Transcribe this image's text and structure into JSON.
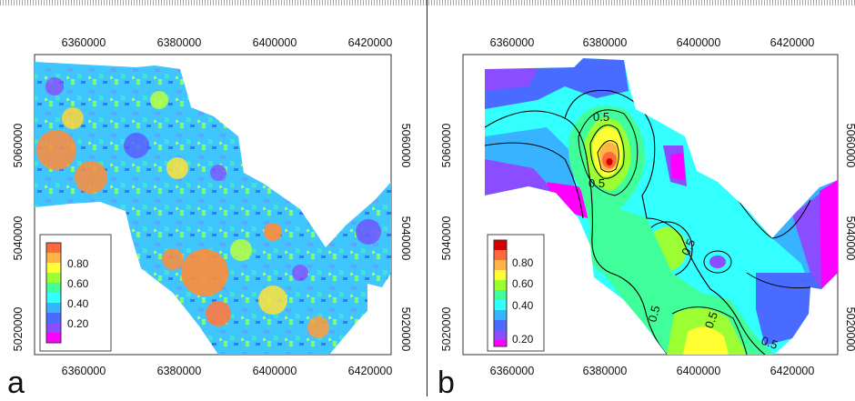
{
  "panels": [
    {
      "letter": "a",
      "xticks": [
        "6360000",
        "6380000",
        "6400000",
        "6420000"
      ],
      "yticks_left": [
        "5060000",
        "5040000",
        "5020000"
      ],
      "yticks_right": [
        "5060000",
        "5040000",
        "5020000"
      ],
      "legend": [
        "0.80",
        "0.60",
        "0.40",
        "0.20"
      ]
    },
    {
      "letter": "b",
      "xticks": [
        "6360000",
        "6380000",
        "6400000",
        "6420000"
      ],
      "yticks_left": [
        "5060000",
        "5040000",
        "5020000"
      ],
      "yticks_right": [
        "5060000",
        "5040000",
        "5020000"
      ],
      "legend": [
        "0.80",
        "0.60",
        "0.40",
        "0.20"
      ],
      "contour_labels": [
        "0.5",
        "0.5",
        "0.5",
        "0.5",
        "0.5",
        "0.5"
      ]
    }
  ],
  "colors": {
    "scale": [
      "#ff00ff",
      "#8a4dff",
      "#4a6bff",
      "#37b3ff",
      "#33ffff",
      "#40ff9a",
      "#9cff33",
      "#ffff33",
      "#ffb347",
      "#ff6a3a",
      "#d40000"
    ]
  }
}
